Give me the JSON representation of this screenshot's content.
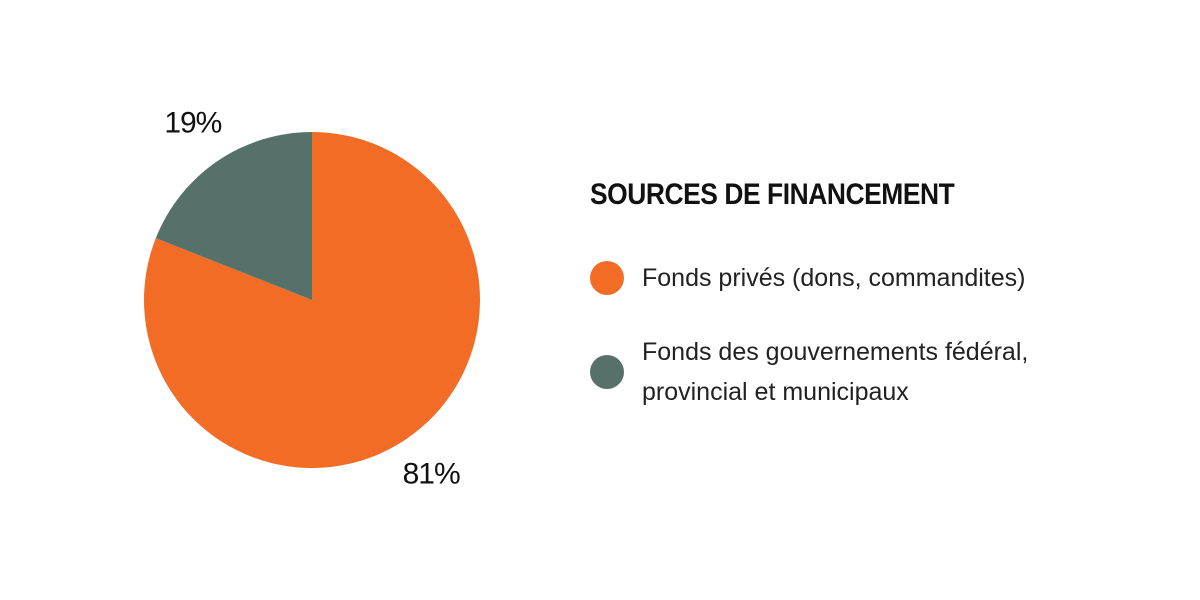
{
  "chart_data": {
    "type": "pie",
    "title": "SOURCES DE FINANCEMENT",
    "categories": [
      "Fonds privés (dons, commandites)",
      "Fonds des gouvernements fédéral, provincial et municipaux"
    ],
    "values": [
      81,
      19
    ],
    "value_labels": [
      "81%",
      "19%"
    ],
    "colors": [
      "#f26c26",
      "#56706a"
    ],
    "legend": "right"
  }
}
